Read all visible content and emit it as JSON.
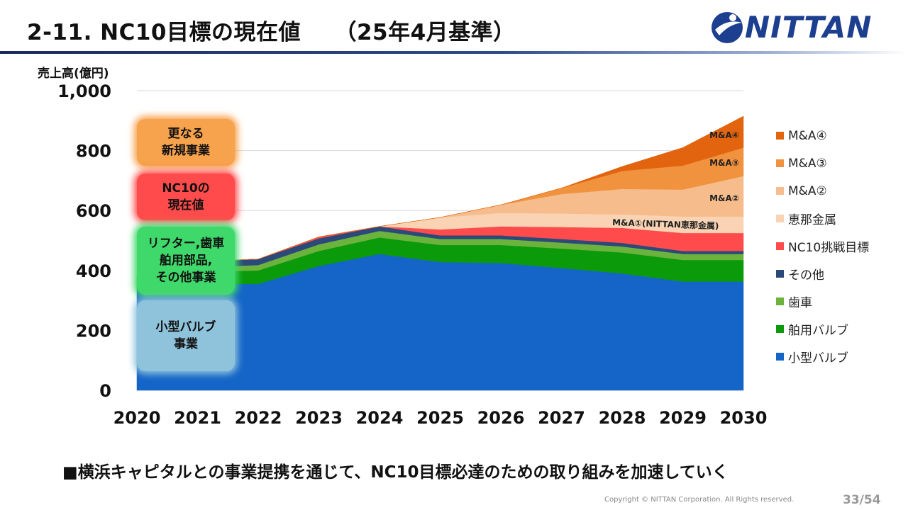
{
  "header": {
    "title": "2-11. NC10目標の現在値　　（25年4月基準）",
    "logo_text": "NITTAN"
  },
  "chart_data": {
    "type": "area",
    "stacked": true,
    "ylabel": "売上高(億円)",
    "ylim": [
      0,
      1000
    ],
    "yticks": [
      "0",
      "200",
      "400",
      "600",
      "800",
      "1,000"
    ],
    "grid": true,
    "x": [
      "2020",
      "2021",
      "2022",
      "2023",
      "2024",
      "2025",
      "2026",
      "2027",
      "2028",
      "2029",
      "2030"
    ],
    "series": [
      {
        "name": "小型バルブ",
        "color": "#1565c8",
        "values": [
          340,
          355,
          355,
          415,
          455,
          428,
          425,
          408,
          390,
          363,
          363
        ]
      },
      {
        "name": "舶用バルブ",
        "color": "#0a9a0a",
        "values": [
          35,
          40,
          45,
          50,
          55,
          57,
          60,
          65,
          70,
          72,
          72
        ]
      },
      {
        "name": "歯車",
        "color": "#6cb33e",
        "values": [
          10,
          15,
          18,
          22,
          22,
          20,
          20,
          20,
          20,
          20,
          20
        ]
      },
      {
        "name": "その他",
        "color": "#2b4a7a",
        "values": [
          0,
          20,
          20,
          20,
          15,
          12,
          12,
          12,
          12,
          10,
          10
        ]
      },
      {
        "name": "NC10挑戦目標",
        "color": "#ff4b4b",
        "values": [
          0,
          0,
          0,
          5,
          0,
          20,
          30,
          40,
          50,
          60,
          60
        ]
      },
      {
        "name": "恵那金属",
        "color": "#f9d3b4",
        "values": [
          0,
          0,
          0,
          0,
          0,
          40,
          45,
          45,
          45,
          55,
          55
        ]
      },
      {
        "name": "M&A②",
        "color": "#f6bc8c",
        "values": [
          0,
          0,
          0,
          0,
          0,
          0,
          27,
          65,
          85,
          90,
          135
        ]
      },
      {
        "name": "M&A③",
        "color": "#f0923e",
        "values": [
          0,
          0,
          0,
          0,
          0,
          0,
          0,
          20,
          60,
          80,
          95
        ]
      },
      {
        "name": "M&A④",
        "color": "#e2640e",
        "values": [
          0,
          0,
          0,
          0,
          0,
          0,
          0,
          0,
          15,
          60,
          105
        ]
      }
    ],
    "annotations": [
      "M&A④",
      "M&A③",
      "M&A②",
      "M&A①(NITTAN恵那金属)"
    ],
    "segment_labels": [
      {
        "text": "更なる\n新規事業",
        "color": "#f7a24d"
      },
      {
        "text": "NC10の\n現在値",
        "color": "#ff4b4b"
      },
      {
        "text": "リフター,歯車\n舶用部品,\nその他事業",
        "color": "#3fd86a"
      },
      {
        "text": "小型バルブ\n事業",
        "color": "#8fc3dc"
      }
    ]
  },
  "legend": [
    {
      "label": "M&A④",
      "color": "#e2640e"
    },
    {
      "label": "M&A③",
      "color": "#f0923e"
    },
    {
      "label": "M&A②",
      "color": "#f6bc8c"
    },
    {
      "label": "恵那金属",
      "color": "#f9d3b4"
    },
    {
      "label": "NC10挑戦目標",
      "color": "#ff4b4b"
    },
    {
      "label": "その他",
      "color": "#2b4a7a"
    },
    {
      "label": "歯車",
      "color": "#6cb33e"
    },
    {
      "label": "舶用バルブ",
      "color": "#0a9a0a"
    },
    {
      "label": "小型バルブ",
      "color": "#1565c8"
    }
  ],
  "footer": {
    "bullet": "■横浜キャピタルとの事業提携を通じて、NC10目標必達のための取り組みを加速していく",
    "copyright": "Copyright © NITTAN Corporation. All Rights reserved.",
    "page": "33/54"
  }
}
